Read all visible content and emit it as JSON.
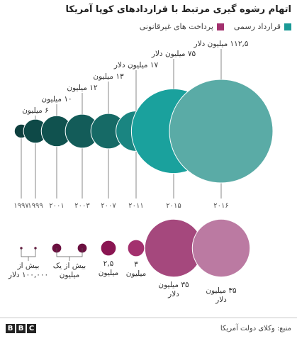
{
  "chart_data": {
    "type": "bubble",
    "title": "اتهام رشوه گیری مرتبط با قراردادهای کوپا آمریکا",
    "categories": [
      "۱۹۹۷",
      "۱۹۹۹",
      "۲۰۰۱",
      "۲۰۰۳",
      "۲۰۰۷",
      "۲۰۱۱",
      "۲۰۱۵",
      "۲۰۱۶"
    ],
    "series": [
      {
        "name": "قرارداد رسمی",
        "color": "#1a9a96",
        "colors": [
          "#0d3f3e",
          "#0e4947",
          "#10524f",
          "#135c59",
          "#166a66",
          "#1a8581",
          "#1aa19d",
          "#5aaba6"
        ],
        "values": [
          2,
          6,
          10,
          12,
          13,
          17,
          75,
          112.5
        ],
        "value_labels": [
          null,
          "۶ میلیون",
          "۱۰ میلیون",
          "۱۲ میلیون",
          "۱۳ میلیون",
          "۱۷ میلیون دلار",
          "۷۵ میلیون دلار",
          "۱۱۲,۵ میلیون دلار"
        ]
      },
      {
        "name": "پرداخت های غیرقانونی",
        "color": "#a3306e",
        "colors": [
          "#5e0e36",
          "#5e0e36",
          "#6b1040",
          "#6b1040",
          "#8a1552",
          "#a3306e",
          "#a5487d",
          "#bb7aa2"
        ],
        "values": [
          0.1,
          0.1,
          1,
          1,
          2.5,
          3,
          35,
          35
        ],
        "value_labels": [
          null,
          "بیش از\n۱۰۰,۰۰۰ دلار",
          null,
          "بیش از یک\nمیلیون",
          "۲,۵\nمیلیون",
          "۳\nمیلیون",
          "۳۵ میلیون\nدلار",
          "۳۵ میلیون\nدلار"
        ]
      }
    ],
    "source": "منبع: وکلای دولت آمریکا",
    "logo": "BBC"
  }
}
